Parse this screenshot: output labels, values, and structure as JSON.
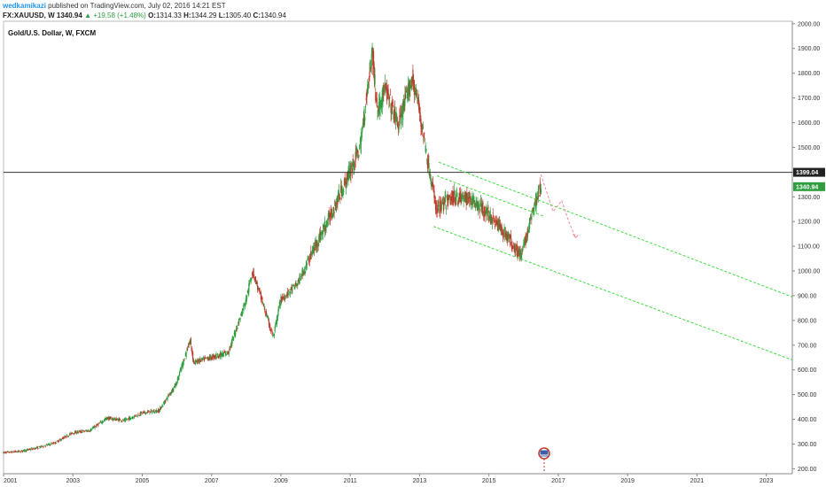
{
  "header": {
    "author": "wedkamikazi",
    "published": "published on TradingView.com, July 02, 2016 14:21 EST"
  },
  "quote": {
    "symbol": "FX:XAUUSD, W",
    "last": "1340.94",
    "change": "+19.58 (+1.48%)",
    "open_label": "O:",
    "open": "1314.33",
    "high_label": "H:",
    "high": "1344.29",
    "low_label": "L:",
    "low": "1305.40",
    "close_label": "C:",
    "close": "1340.94"
  },
  "colors": {
    "up": "#2e9e3f",
    "down": "#c0392b",
    "channel": "#3ddc3d",
    "projection": "#f28a9a",
    "hline": "#333333",
    "last_price_bg": "#2e9e3f",
    "hline_tag_bg": "#222222"
  },
  "chart_data": {
    "type": "line",
    "title": "Gold/U.S. Dollar, W, FXCM",
    "ylim": [
      180,
      2010
    ],
    "xlim": [
      2001.0,
      2023.75
    ],
    "yticks": [
      200,
      300,
      400,
      500,
      600,
      700,
      800,
      900,
      1000,
      1100,
      1200,
      1300,
      1400,
      1500,
      1600,
      1700,
      1800,
      1900,
      2000
    ],
    "ytick_labels": [
      "200.00",
      "300.00",
      "400.00",
      "500.00",
      "600.00",
      "700.00",
      "800.00",
      "900.00",
      "1000.00",
      "1100.00",
      "1200.00",
      "1300.00",
      "1400.00",
      "1500.00",
      "1600.00",
      "1700.00",
      "1800.00",
      "1900.00",
      "2000.00"
    ],
    "xticks": [
      2001,
      2003,
      2005,
      2007,
      2009,
      2011,
      2013,
      2015,
      2017,
      2019,
      2021,
      2023
    ],
    "xtick_labels": [
      "2001",
      "2003",
      "2005",
      "2007",
      "2009",
      "2011",
      "2013",
      "2015",
      "2017",
      "2019",
      "2021",
      "2023"
    ],
    "grid": false,
    "series": [
      {
        "x": [
          2001.0,
          2001.5,
          2002.0,
          2002.5,
          2003.0,
          2003.5,
          2004.0,
          2004.5,
          2005.0,
          2005.5,
          2006.0,
          2006.4,
          2006.5,
          2007.0,
          2007.5,
          2008.0,
          2008.2,
          2008.8,
          2009.0,
          2009.5,
          2010.0,
          2010.5,
          2011.0,
          2011.3,
          2011.65,
          2011.8,
          2012.0,
          2012.4,
          2012.8,
          2013.0,
          2013.3,
          2013.5,
          2014.0,
          2014.5,
          2015.0,
          2015.5,
          2015.95,
          2016.3,
          2016.5
        ],
        "values": [
          265,
          270,
          285,
          305,
          345,
          355,
          405,
          395,
          425,
          435,
          545,
          720,
          630,
          650,
          670,
          880,
          1000,
          730,
          880,
          950,
          1100,
          1240,
          1400,
          1500,
          1890,
          1640,
          1740,
          1590,
          1780,
          1660,
          1400,
          1250,
          1300,
          1290,
          1230,
          1150,
          1060,
          1250,
          1340
        ]
      }
    ],
    "horizontal_line": {
      "value": 1399.04,
      "label": "1399.04"
    },
    "last_price": {
      "value": 1340.94,
      "label": "1340.94"
    },
    "channel_upper": {
      "x": [
        2013.55,
        2023.75
      ],
      "y": [
        1440,
        895
      ]
    },
    "channel_lower": {
      "x": [
        2013.4,
        2023.75
      ],
      "y": [
        1180,
        640
      ]
    },
    "channel_mid": {
      "x": [
        2013.5,
        2016.6
      ],
      "y": [
        1385,
        1220
      ]
    },
    "projection": {
      "x": [
        2016.5,
        2016.85,
        2017.1,
        2017.3,
        2017.5
      ],
      "y": [
        1390,
        1240,
        1285,
        1200,
        1135
      ]
    }
  }
}
